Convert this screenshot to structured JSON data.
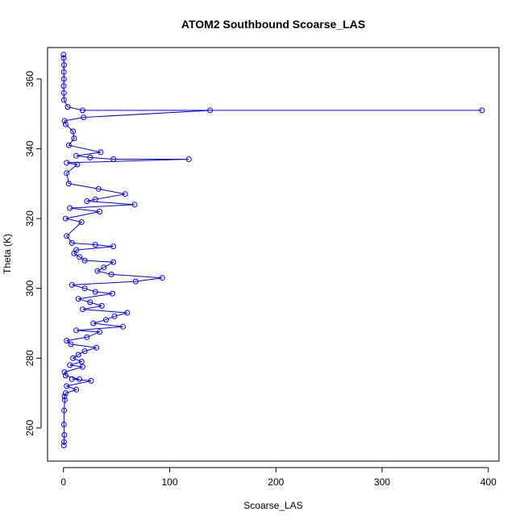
{
  "chart_data": {
    "type": "scatter",
    "title": "ATOM2 Southbound Scoarse_LAS",
    "xlabel": "Scoarse_LAS",
    "ylabel": "Theta (K)",
    "xlim": [
      -15,
      410
    ],
    "ylim": [
      250.5,
      369
    ],
    "x_ticks": [
      0,
      100,
      200,
      300,
      400
    ],
    "y_ticks": [
      260,
      280,
      300,
      320,
      340,
      360
    ],
    "grid": false,
    "legend": "none",
    "color": "#0000ff",
    "marker": "open-circle",
    "connected": true,
    "series": [
      {
        "points": [
          [
            0.3,
            255
          ],
          [
            0.5,
            256
          ],
          [
            0.8,
            258
          ],
          [
            0.4,
            261
          ],
          [
            0.6,
            265
          ],
          [
            1.2,
            268
          ],
          [
            0.9,
            269
          ],
          [
            2.0,
            270
          ],
          [
            12,
            271
          ],
          [
            3,
            272
          ],
          [
            26,
            273.5
          ],
          [
            8,
            274
          ],
          [
            15,
            274
          ],
          [
            2,
            275
          ],
          [
            1,
            276
          ],
          [
            18,
            277.5
          ],
          [
            6,
            278
          ],
          [
            17,
            279
          ],
          [
            9,
            280
          ],
          [
            14,
            281
          ],
          [
            20,
            282
          ],
          [
            31,
            283
          ],
          [
            7,
            284
          ],
          [
            3,
            285
          ],
          [
            22,
            286
          ],
          [
            34,
            287.5
          ],
          [
            12,
            288
          ],
          [
            56,
            289
          ],
          [
            28,
            290
          ],
          [
            40,
            291
          ],
          [
            48,
            292
          ],
          [
            60,
            293
          ],
          [
            18,
            294
          ],
          [
            36,
            295
          ],
          [
            25,
            296
          ],
          [
            14,
            297
          ],
          [
            46,
            298.5
          ],
          [
            30,
            299
          ],
          [
            20,
            300
          ],
          [
            8,
            301
          ],
          [
            68,
            302
          ],
          [
            93,
            303
          ],
          [
            45,
            304
          ],
          [
            32,
            305
          ],
          [
            38,
            306
          ],
          [
            47,
            307.5
          ],
          [
            20,
            308
          ],
          [
            15,
            309
          ],
          [
            10,
            310
          ],
          [
            12,
            311
          ],
          [
            47,
            312
          ],
          [
            30,
            312.5
          ],
          [
            8,
            313
          ],
          [
            3,
            315
          ],
          [
            17,
            319
          ],
          [
            2,
            320
          ],
          [
            34,
            322
          ],
          [
            6,
            323
          ],
          [
            67,
            324
          ],
          [
            22,
            325
          ],
          [
            30,
            325.5
          ],
          [
            58,
            327
          ],
          [
            33,
            328.5
          ],
          [
            5,
            330
          ],
          [
            3,
            333
          ],
          [
            13,
            335.5
          ],
          [
            3,
            336
          ],
          [
            118,
            337
          ],
          [
            47,
            337
          ],
          [
            25,
            337.5
          ],
          [
            12,
            338
          ],
          [
            35,
            339
          ],
          [
            5,
            341
          ],
          [
            10,
            343
          ],
          [
            9,
            345
          ],
          [
            2,
            347
          ],
          [
            1,
            348
          ],
          [
            19,
            349
          ],
          [
            138,
            351
          ],
          [
            394,
            351
          ],
          [
            18,
            351
          ],
          [
            4,
            352
          ],
          [
            0.5,
            354
          ],
          [
            0.3,
            356
          ],
          [
            0.2,
            358
          ],
          [
            0.4,
            360
          ],
          [
            0.3,
            362
          ],
          [
            0.5,
            364
          ],
          [
            0.2,
            366
          ],
          [
            0.1,
            367
          ]
        ]
      }
    ]
  }
}
